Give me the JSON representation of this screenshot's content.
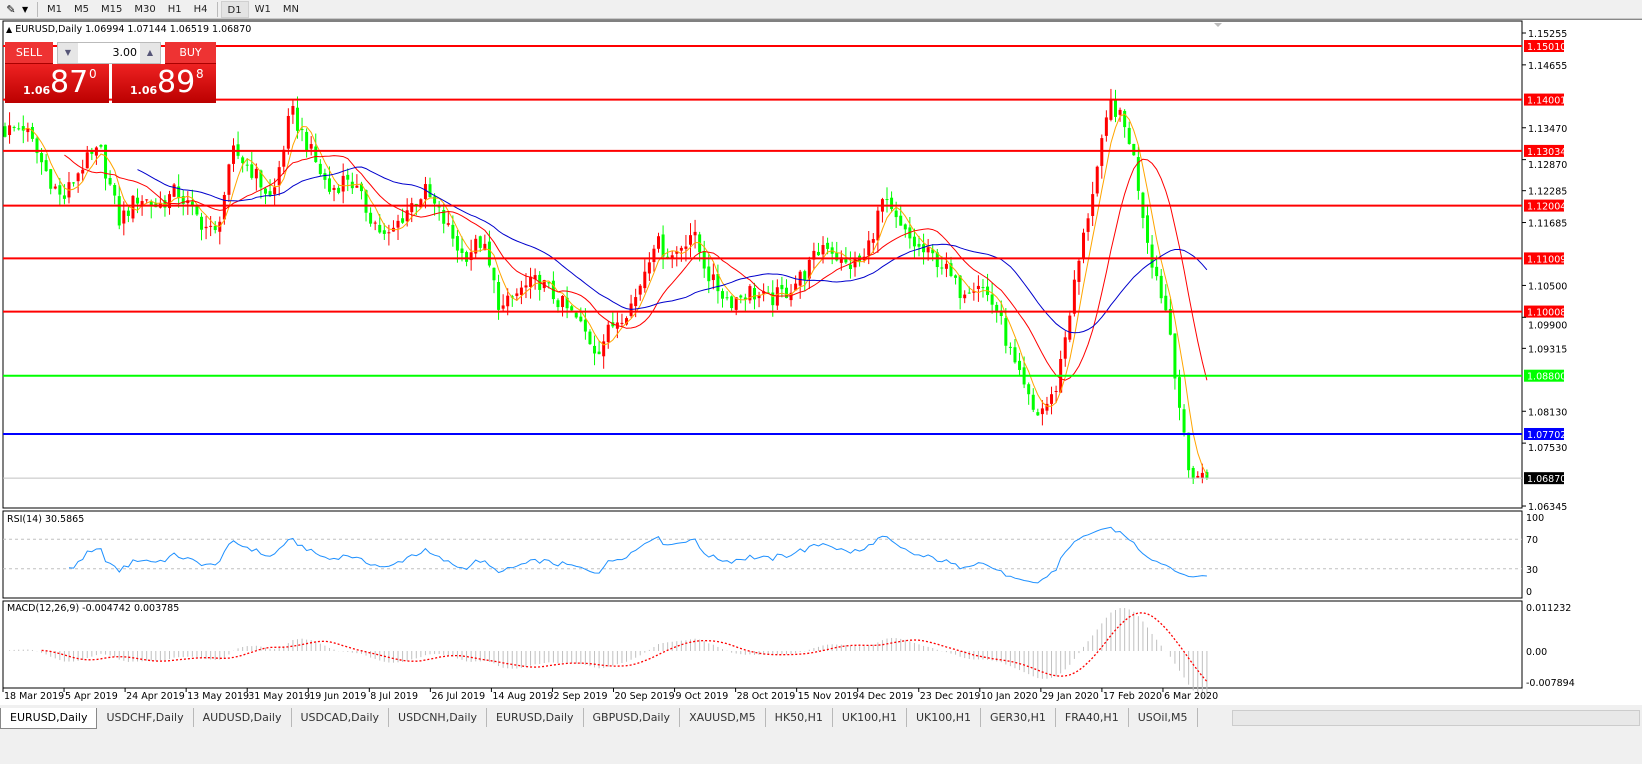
{
  "toolbar": {
    "timeframes": [
      "M1",
      "M5",
      "M15",
      "M30",
      "H1",
      "H4",
      "D1",
      "W1",
      "MN"
    ],
    "active": "D1"
  },
  "chart": {
    "symbol_info": "EURUSD,Daily  1.06994 1.07144 1.06519 1.06870",
    "trade_panel": {
      "sell_label": "SELL",
      "buy_label": "BUY",
      "lot": "3.00",
      "sell_prefix": "1.06",
      "sell_big": "87",
      "sell_sup": "0",
      "buy_prefix": "1.06",
      "buy_big": "89",
      "buy_sup": "8"
    },
    "price_ticks": [
      "1.15255",
      "1.14655",
      "1.13470",
      "1.12870",
      "1.12285",
      "1.11685",
      "1.10500",
      "1.09900",
      "1.09315",
      "1.08130",
      "1.07530",
      "1.06345"
    ],
    "hlines": [
      {
        "price": 1.1501,
        "label": "1.15010",
        "color": "#ff0000"
      },
      {
        "price": 1.14001,
        "label": "1.14001",
        "color": "#ff0000"
      },
      {
        "price": 1.13034,
        "label": "1.13034",
        "color": "#ff0000"
      },
      {
        "price": 1.12004,
        "label": "1.12004",
        "color": "#ff0000"
      },
      {
        "price": 1.11009,
        "label": "1.11009",
        "color": "#ff0000"
      },
      {
        "price": 1.10008,
        "label": "1.10008",
        "color": "#ff0000"
      },
      {
        "price": 1.088,
        "label": "1.08800",
        "color": "#00ff00"
      },
      {
        "price": 1.07702,
        "label": "1.07702",
        "color": "#0000ff"
      }
    ],
    "current_price": {
      "price": 1.0687,
      "label": "1.06870"
    },
    "colors": {
      "bull": "#ff0000",
      "bear": "#00ff00",
      "ma_fast": "#ffa500",
      "ma_mid": "#ff0000",
      "ma_slow": "#0000cc",
      "rsi": "#1e90ff",
      "macd_hist": "#c0c0c0",
      "macd_signal": "#ff0000"
    },
    "close_path": [
      1.1341,
      1.135,
      1.1275,
      1.1209,
      1.1275,
      1.1303,
      1.1171,
      1.1218,
      1.1199,
      1.1228,
      1.1181,
      1.1143,
      1.1303,
      1.1265,
      1.1209,
      1.1379,
      1.1303,
      1.1228,
      1.1256,
      1.119,
      1.1134,
      1.119,
      1.1228,
      1.1171,
      1.1105,
      1.1134,
      1.1002,
      1.104,
      1.1059,
      1.1021,
      1.0984,
      1.0927,
      1.0984,
      1.1021,
      1.1134,
      1.1105,
      1.1152,
      1.1059,
      1.1021,
      1.104,
      1.1021,
      1.104,
      1.1077,
      1.1134,
      1.1087,
      1.1096,
      1.1209,
      1.1152,
      1.1115,
      1.1096,
      1.104,
      1.1059,
      1.1002,
      1.0889,
      1.0804,
      1.0842,
      1.104,
      1.1228,
      1.1398,
      1.1322,
      1.1115,
      1.0984,
      1.07,
      1.0687
    ],
    "rsi": {
      "label": "RSI(14) 30.5865",
      "ticks": [
        "100",
        "70",
        "30",
        "0"
      ]
    },
    "macd": {
      "label": "MACD(12,26,9) -0.004742 0.003785",
      "ticks": [
        "0.011232",
        "0.00",
        "-0.007894"
      ]
    },
    "date_labels": [
      "18 Mar 2019",
      "5 Apr 2019",
      "24 Apr 2019",
      "13 May 2019",
      "31 May 2019",
      "19 Jun 2019",
      "8 Jul 2019",
      "26 Jul 2019",
      "14 Aug 2019",
      "2 Sep 2019",
      "20 Sep 2019",
      "9 Oct 2019",
      "28 Oct 2019",
      "15 Nov 2019",
      "4 Dec 2019",
      "23 Dec 2019",
      "10 Jan 2020",
      "29 Jan 2020",
      "17 Feb 2020",
      "6 Mar 2020"
    ]
  },
  "tabs": [
    "EURUSD,Daily",
    "USDCHF,Daily",
    "AUDUSD,Daily",
    "USDCAD,Daily",
    "USDCNH,Daily",
    "EURUSD,Daily",
    "GBPUSD,Daily",
    "XAUUSD,M5",
    "HK50,H1",
    "UK100,H1",
    "UK100,H1",
    "GER30,H1",
    "FRA40,H1",
    "USOil,M5"
  ],
  "active_tab": 0
}
